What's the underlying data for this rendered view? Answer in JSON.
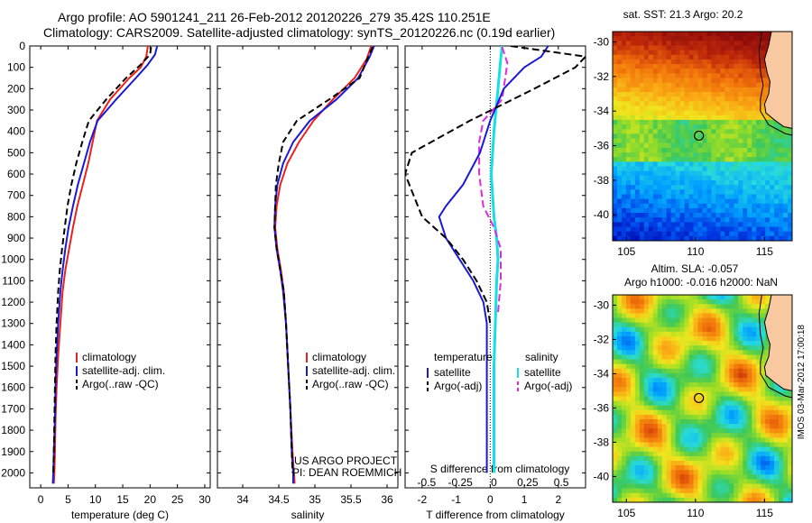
{
  "header": {
    "line1": "Argo profile: AO 5901241_211 26-Feb-2012 20120226_279 35.42S 110.251E",
    "line2": "Climatology: CARS2009. Satellite-adjusted climatology: synTS_20120226.nc (0.19d earlier)"
  },
  "depth_axis": {
    "ticks": [
      "0",
      "100",
      "200",
      "300",
      "400",
      "500",
      "600",
      "700",
      "800",
      "900",
      "1000",
      "1100",
      "1200",
      "1300",
      "1400",
      "1500",
      "1600",
      "1700",
      "1800",
      "1900",
      "2000"
    ]
  },
  "colors": {
    "climatology": "#e8221c",
    "satellite": "#1a1ad6",
    "argo": "#000000",
    "sat_s": "#14e0e6",
    "argo_s": "#e12ad9"
  },
  "temp_panel": {
    "xlabel": "temperature (deg C)",
    "ticks": [
      "0",
      "5",
      "10",
      "15",
      "20",
      "25",
      "30"
    ],
    "legend": [
      "climatology",
      "satellite-adj. clim.",
      "Argo(..raw -QC)"
    ]
  },
  "sal_panel": {
    "xlabel": "salinity",
    "ticks": [
      "34",
      "34.5",
      "35",
      "35.5",
      "36"
    ],
    "legend": [
      "climatology",
      "satellite-adj. clim.",
      "Argo(..raw -QC)"
    ],
    "credit1": "US ARGO PROJECT",
    "credit2": "PI: DEAN ROEMMICH"
  },
  "diff_panel": {
    "xlabel": "T difference from climatology",
    "top_label": "S difference from climatology",
    "t_ticks": [
      "-2",
      "-1",
      "0",
      "1",
      "2"
    ],
    "s_ticks": [
      "-0.5",
      "-0.25",
      "0",
      "0.25",
      "0.5"
    ],
    "legend_t_head": "temperature",
    "legend_s_head": "salinity",
    "legend_t": [
      "satellite",
      "Argo(-adj)"
    ],
    "legend_s": [
      "satellite",
      "Argo(-adj)"
    ]
  },
  "sst_map": {
    "title": "sat. SST: 21.3 Argo: 20.2",
    "xticks": [
      "105",
      "110",
      "115"
    ],
    "yticks": [
      "-30",
      "-32",
      "-34",
      "-36",
      "-38",
      "-40"
    ]
  },
  "sla_map": {
    "title1": "Altim. SLA: -0.057",
    "title2": "Argo h1000: -0.016 h2000: NaN",
    "xticks": [
      "105",
      "110",
      "115"
    ],
    "yticks": [
      "-30",
      "-32",
      "-34",
      "-36",
      "-38",
      "-40"
    ],
    "stamp": "IMOS 03-Mar-2012 17:00:18"
  },
  "chart_data": [
    {
      "type": "line",
      "title": "",
      "xlabel": "temperature (deg C)",
      "ylabel": "",
      "xlim": [
        -2,
        31
      ],
      "ylim": [
        2070,
        0
      ],
      "series": [
        {
          "name": "climatology",
          "x": [
            19.6,
            19.3,
            18.3,
            16.2,
            12.7,
            10.3,
            9.5,
            8.7,
            7.7,
            6.7,
            5.9,
            5.2,
            4.5,
            4.0,
            3.6,
            3.2,
            2.9,
            2.7,
            2.6,
            2.5,
            2.4,
            2.4
          ],
          "y": [
            0,
            50,
            100,
            150,
            250,
            350,
            450,
            550,
            650,
            750,
            850,
            950,
            1050,
            1150,
            1300,
            1450,
            1600,
            1750,
            1900,
            2000,
            2050,
            2050
          ]
        },
        {
          "name": "satellite-adj. clim.",
          "x": [
            21.3,
            20.9,
            19.5,
            17.4,
            13.8,
            10.4,
            9.0,
            7.9,
            6.8,
            5.9,
            5.1,
            4.5,
            4.0,
            3.6,
            3.2,
            2.9,
            2.7,
            2.6,
            2.4,
            2.3,
            2.2
          ],
          "y": [
            0,
            40,
            90,
            150,
            250,
            350,
            450,
            550,
            650,
            750,
            850,
            950,
            1050,
            1150,
            1300,
            1450,
            1600,
            1750,
            1900,
            2000,
            2050
          ]
        },
        {
          "name": "Argo(..raw -QC)",
          "x": [
            20.2,
            20.0,
            18.2,
            15.6,
            12.0,
            8.8,
            7.6,
            6.5,
            5.6,
            4.9,
            4.4,
            3.9,
            3.5,
            3.2,
            2.9,
            2.7,
            2.6,
            2.5,
            2.4,
            2.3
          ],
          "y": [
            5,
            40,
            90,
            150,
            250,
            350,
            450,
            550,
            650,
            750,
            850,
            950,
            1050,
            1150,
            1300,
            1450,
            1600,
            1750,
            1900,
            2000
          ]
        }
      ]
    },
    {
      "type": "line",
      "title": "",
      "xlabel": "salinity",
      "ylabel": "",
      "xlim": [
        33.65,
        36.15
      ],
      "ylim": [
        2070,
        0
      ],
      "series": [
        {
          "name": "climatology",
          "x": [
            35.78,
            35.72,
            35.55,
            35.25,
            34.98,
            34.78,
            34.62,
            34.52,
            34.47,
            34.45,
            34.48,
            34.53,
            34.57,
            34.6,
            34.63,
            34.66,
            34.69,
            34.71,
            34.72
          ],
          "y": [
            0,
            60,
            150,
            250,
            350,
            450,
            550,
            650,
            750,
            850,
            950,
            1050,
            1150,
            1300,
            1500,
            1700,
            1900,
            2000,
            2050
          ]
        },
        {
          "name": "satellite-adj. clim.",
          "x": [
            35.82,
            35.76,
            35.6,
            35.3,
            34.93,
            34.7,
            34.56,
            34.48,
            34.45,
            34.44,
            34.47,
            34.52,
            34.56,
            34.6,
            34.63,
            34.66,
            34.68,
            34.7,
            34.7
          ],
          "y": [
            0,
            50,
            150,
            250,
            350,
            450,
            550,
            650,
            750,
            850,
            950,
            1050,
            1150,
            1300,
            1500,
            1700,
            1900,
            2000,
            2050
          ]
        },
        {
          "name": "Argo(..raw -QC)",
          "x": [
            35.8,
            35.74,
            35.62,
            35.2,
            34.75,
            34.56,
            34.5,
            34.46,
            34.45,
            34.44,
            34.47,
            34.52,
            34.57,
            34.6,
            34.63,
            34.66,
            34.68,
            34.69
          ],
          "y": [
            5,
            50,
            150,
            250,
            350,
            450,
            550,
            650,
            750,
            850,
            950,
            1050,
            1150,
            1300,
            1500,
            1700,
            1900,
            2000
          ]
        }
      ]
    },
    {
      "type": "line",
      "title": "",
      "xlabel": "T difference from climatology",
      "ylabel": "",
      "xlim": [
        -2.5,
        2.8
      ],
      "ylim": [
        2070,
        0
      ],
      "series": [
        {
          "name": "satellite",
          "x": [
            1.7,
            1.5,
            1.0,
            0.4,
            0.0,
            -0.3,
            -0.8,
            -1.3,
            -1.5,
            -1.3,
            -0.9,
            -0.5,
            -0.2,
            -0.1,
            -0.1,
            -0.1,
            -0.1,
            -0.1
          ],
          "y": [
            0,
            50,
            100,
            200,
            350,
            500,
            650,
            750,
            800,
            900,
            1000,
            1100,
            1200,
            1300,
            1500,
            1700,
            1900,
            2000
          ]
        },
        {
          "name": "Argo(-adj)",
          "x": [
            0.6,
            2.8,
            2.5,
            1.3,
            -0.6,
            -2.3,
            -2.5,
            -2.0,
            -1.3,
            -0.8,
            -0.4,
            -0.1,
            0.0
          ],
          "y": [
            0,
            50,
            100,
            200,
            350,
            500,
            600,
            800,
            900,
            1000,
            1100,
            1200,
            1300
          ]
        }
      ]
    },
    {
      "type": "line",
      "title": "",
      "xlabel": "S difference from climatology",
      "ylabel": "",
      "xlim": [
        -0.66,
        0.68
      ],
      "ylim": [
        2070,
        0
      ],
      "series": [
        {
          "name": "satellite",
          "x": [
            0.06,
            0.05,
            0.03,
            0.0,
            -0.01,
            -0.02,
            -0.01,
            0.0,
            0.02,
            0.03,
            0.02,
            0.01,
            0.0,
            0.0,
            0.0
          ],
          "y": [
            0,
            60,
            200,
            400,
            500,
            600,
            700,
            800,
            900,
            1000,
            1100,
            1300,
            1500,
            1800,
            2000
          ]
        },
        {
          "name": "Argo(-adj)",
          "x": [
            0.06,
            0.1,
            0.06,
            -0.08,
            -0.11,
            -0.11,
            -0.08,
            0.0,
            0.05,
            0.05,
            0.03
          ],
          "y": [
            5,
            80,
            250,
            350,
            450,
            600,
            750,
            850,
            950,
            1100,
            1250
          ]
        }
      ]
    }
  ]
}
